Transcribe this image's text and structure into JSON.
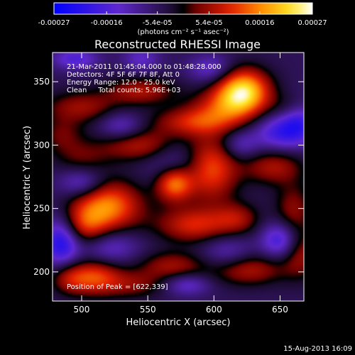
{
  "colorbar": {
    "tick_labels": [
      "-0.00027",
      "-0.00016",
      "-5.4e-05",
      "5.4e-05",
      "0.00016",
      "0.00027"
    ],
    "tick_values": [
      -0.00027,
      -0.00016,
      -5.4e-05,
      5.4e-05,
      0.00016,
      0.00027
    ],
    "range": [
      -0.00027,
      0.00027
    ],
    "unit_label": "(photons cm⁻² s⁻¹ asec⁻²)"
  },
  "chart_data": {
    "type": "heatmap",
    "title": "Reconstructed RHESSI Image",
    "xlabel": "Heliocentric X (arcsec)",
    "ylabel": "Heliocentric Y (arcsec)",
    "xlim": [
      478,
      668
    ],
    "ylim": [
      177,
      373
    ],
    "x_ticks": [
      500,
      550,
      600,
      650
    ],
    "y_ticks": [
      200,
      250,
      300,
      350
    ],
    "annotations": [
      "21-Mar-2011 01:45:04.000 to 01:48:28.000",
      "Detectors: 4F 5F 6F 7F 8F, Att 0",
      "Energy Range: 12.0 - 25.0 keV",
      "Clean     Total counts: 5.96E+03"
    ],
    "peak_label": "Position of Peak = [622,339]",
    "peak": [
      622,
      339
    ],
    "sources": [
      {
        "x": 622,
        "y": 343,
        "sx": 14,
        "sy": 12,
        "v": 0.00027
      },
      {
        "x": 608,
        "y": 330,
        "sx": 18,
        "sy": 10,
        "v": 0.00012
      },
      {
        "x": 585,
        "y": 318,
        "sx": 22,
        "sy": 8,
        "v": 0.00013
      },
      {
        "x": 545,
        "y": 343,
        "sx": 18,
        "sy": 8,
        "v": 0.00011
      },
      {
        "x": 500,
        "y": 330,
        "sx": 20,
        "sy": 9,
        "v": 0.0001
      },
      {
        "x": 485,
        "y": 308,
        "sx": 12,
        "sy": 10,
        "v": 7e-05
      },
      {
        "x": 545,
        "y": 300,
        "sx": 22,
        "sy": 9,
        "v": 0.00012
      },
      {
        "x": 500,
        "y": 290,
        "sx": 15,
        "sy": 9,
        "v": 6e-05
      },
      {
        "x": 598,
        "y": 281,
        "sx": 14,
        "sy": 18,
        "v": 0.00017
      },
      {
        "x": 570,
        "y": 270,
        "sx": 10,
        "sy": 10,
        "v": 0.00022
      },
      {
        "x": 520,
        "y": 252,
        "sx": 18,
        "sy": 14,
        "v": 0.0002
      },
      {
        "x": 500,
        "y": 235,
        "sx": 14,
        "sy": 12,
        "v": 0.00014
      },
      {
        "x": 585,
        "y": 237,
        "sx": 20,
        "sy": 10,
        "v": 0.00014
      },
      {
        "x": 645,
        "y": 283,
        "sx": 16,
        "sy": 10,
        "v": 0.00011
      },
      {
        "x": 660,
        "y": 250,
        "sx": 10,
        "sy": 14,
        "v": 9e-05
      },
      {
        "x": 665,
        "y": 215,
        "sx": 10,
        "sy": 14,
        "v": 0.0001
      },
      {
        "x": 618,
        "y": 242,
        "sx": 12,
        "sy": 9,
        "v": 9e-05
      },
      {
        "x": 568,
        "y": 205,
        "sx": 18,
        "sy": 8,
        "v": 0.0001
      },
      {
        "x": 625,
        "y": 202,
        "sx": 20,
        "sy": 9,
        "v": 0.00012
      },
      {
        "x": 510,
        "y": 196,
        "sx": 14,
        "sy": 10,
        "v": 0.00016
      },
      {
        "x": 490,
        "y": 195,
        "sx": 10,
        "sy": 9,
        "v": 9e-05
      },
      {
        "x": 540,
        "y": 190,
        "sx": 16,
        "sy": 8,
        "v": 8e-05
      },
      {
        "x": 660,
        "y": 330,
        "sx": 12,
        "sy": 8,
        "v": 6e-05
      },
      {
        "x": 650,
        "y": 310,
        "sx": 14,
        "sy": 10,
        "v": -0.00013
      },
      {
        "x": 665,
        "y": 320,
        "sx": 10,
        "sy": 12,
        "v": -0.00012
      },
      {
        "x": 520,
        "y": 220,
        "sx": 16,
        "sy": 10,
        "v": -0.0001
      },
      {
        "x": 485,
        "y": 225,
        "sx": 10,
        "sy": 14,
        "v": -0.0002
      },
      {
        "x": 570,
        "y": 285,
        "sx": 14,
        "sy": 14,
        "v": -9e-05
      },
      {
        "x": 610,
        "y": 215,
        "sx": 14,
        "sy": 10,
        "v": -8e-05
      },
      {
        "x": 650,
        "y": 225,
        "sx": 10,
        "sy": 10,
        "v": -0.00014
      },
      {
        "x": 545,
        "y": 368,
        "sx": 10,
        "sy": 8,
        "v": -8e-05
      },
      {
        "x": 530,
        "y": 315,
        "sx": 12,
        "sy": 8,
        "v": -9e-05
      },
      {
        "x": 500,
        "y": 270,
        "sx": 12,
        "sy": 8,
        "v": -0.0001
      },
      {
        "x": 620,
        "y": 300,
        "sx": 10,
        "sy": 8,
        "v": -8e-05
      },
      {
        "x": 598,
        "y": 360,
        "sx": 12,
        "sy": 8,
        "v": -9e-05
      },
      {
        "x": 495,
        "y": 368,
        "sx": 12,
        "sy": 6,
        "v": -0.00011
      },
      {
        "x": 580,
        "y": 190,
        "sx": 12,
        "sy": 6,
        "v": -9e-05
      }
    ]
  },
  "footer": {
    "timestamp": "15-Aug-2013 16:09"
  }
}
